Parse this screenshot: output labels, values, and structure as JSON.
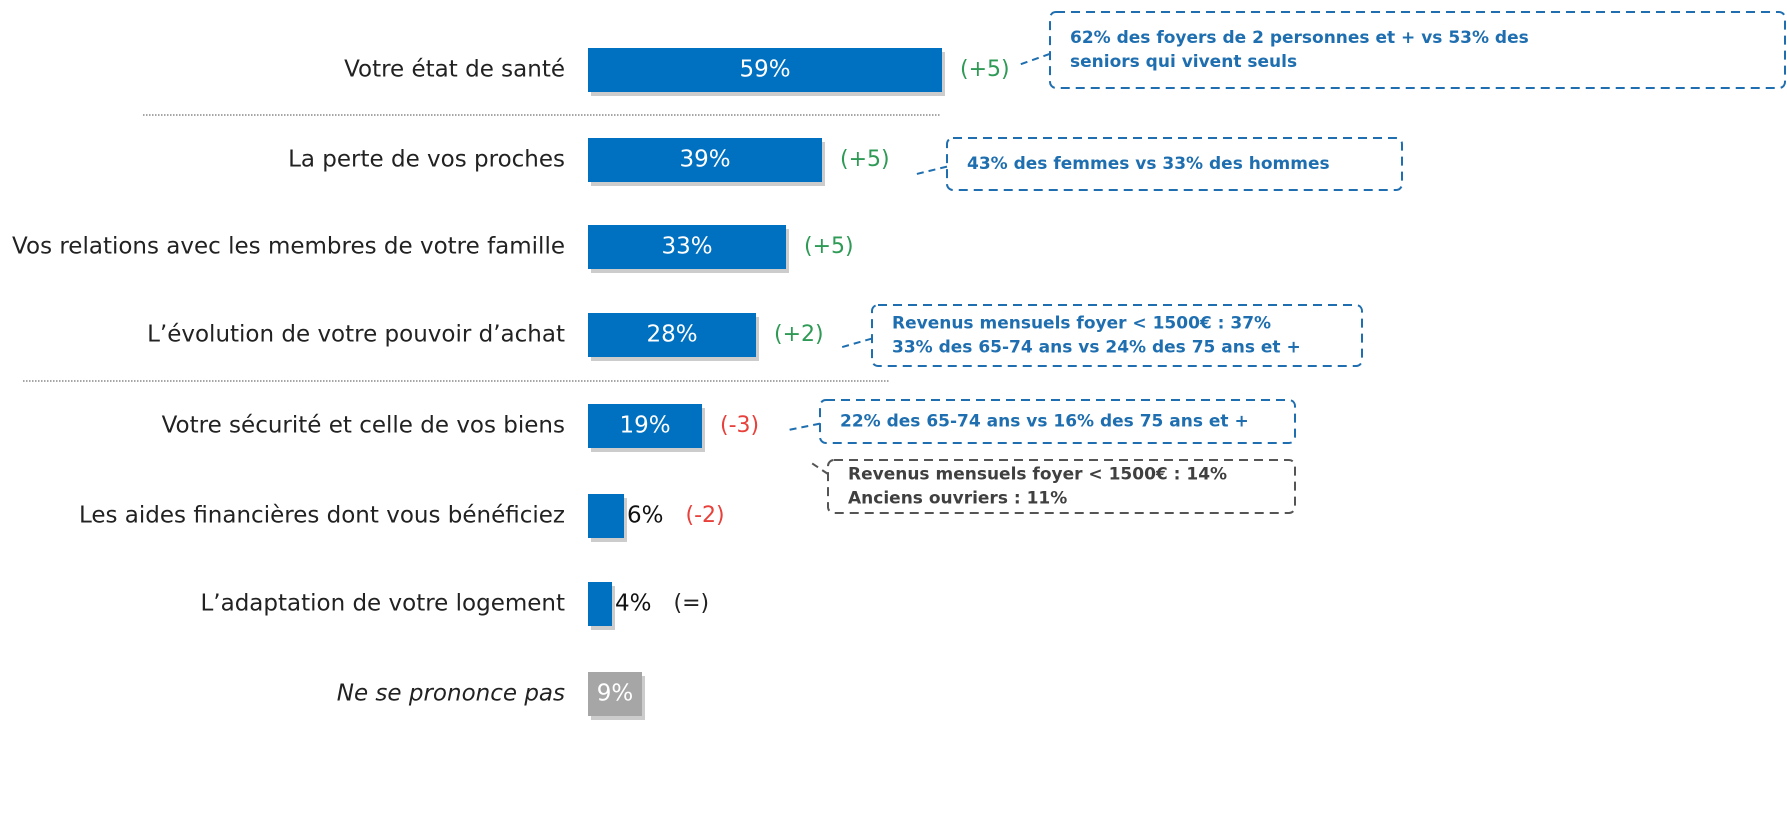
{
  "chart_data": {
    "type": "bar",
    "orientation": "horizontal",
    "categories": [
      "Votre état de santé",
      "La perte de vos proches",
      "Vos relations avec les membres de votre famille",
      "L’évolution de votre pouvoir d’achat",
      "Votre sécurité et celle de vos biens",
      "Les aides financières dont vous bénéficiez",
      "L’adaptation de votre logement",
      "Ne se prononce pas"
    ],
    "values": [
      59,
      39,
      33,
      28,
      19,
      6,
      4,
      9
    ],
    "value_labels": [
      "59%",
      "39%",
      "33%",
      "28%",
      "19%",
      "6%",
      "4%",
      "9%"
    ],
    "colors": [
      "#0070c0",
      "#0070c0",
      "#0070c0",
      "#0070c0",
      "#0070c0",
      "#0070c0",
      "#0070c0",
      "#a6a6a6"
    ],
    "changes": [
      "(+5)",
      "(+5)",
      "(+5)",
      "(+2)",
      "(-3)",
      "(-2)",
      "(=)",
      null
    ],
    "change_colors": [
      "#2e9a55",
      "#2e9a55",
      "#2e9a55",
      "#2e9a55",
      "#e8403a",
      "#e8403a",
      "#222222",
      null
    ],
    "annotations": [
      {
        "lines": [
          "62% des foyers de 2 personnes et + vs 53% des",
          "seniors qui vivent seuls"
        ],
        "color": "#1f6fb0"
      },
      {
        "lines": [
          "43% des femmes vs 33% des hommes"
        ],
        "color": "#1f6fb0"
      },
      {
        "lines": [
          "Revenus mensuels foyer < 1500€ : 37%",
          "33% des 65-74 ans vs 24% des 75 ans et +"
        ],
        "color": "#1f6fb0"
      },
      {
        "lines": [
          "22% des 65-74 ans vs 16% des 75 ans et +"
        ],
        "color": "#1f6fb0"
      },
      {
        "lines": [
          "Revenus mensuels foyer < 1500€ : 14%",
          "Anciens ouvriers : 11%"
        ],
        "color": "#404040"
      }
    ]
  }
}
